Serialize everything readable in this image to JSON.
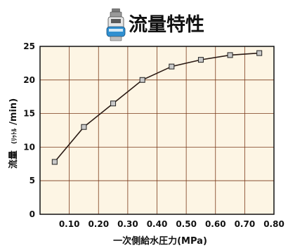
{
  "header": {
    "title": "流量特性",
    "icon": "valve-cartridge-icon"
  },
  "chart_data": {
    "type": "line",
    "title": "流量特性",
    "xlabel": "一次側給水圧力(MPa)",
    "ylabel": "流量",
    "ylabel_unit_small": "(ﾘｯﾄﾙ",
    "ylabel_unit": "/min)",
    "xlim": [
      0,
      0.8
    ],
    "ylim": [
      0,
      25
    ],
    "x_ticks": [
      "0.10",
      "0.20",
      "0.30",
      "0.40",
      "0.50",
      "0.60",
      "0.70",
      "0.80"
    ],
    "y_ticks": [
      "0",
      "5",
      "10",
      "15",
      "20",
      "25"
    ],
    "grid": true,
    "background_color": "#fdf5e4",
    "line_color": "#2a1a14",
    "marker_color": "#c9c9c9",
    "series": [
      {
        "x": [
          0.05,
          0.15,
          0.25,
          0.35,
          0.45,
          0.55,
          0.65,
          0.75
        ],
        "y": [
          7.8,
          13.0,
          16.5,
          20.0,
          22.0,
          23.0,
          23.7,
          24.0
        ]
      }
    ]
  }
}
